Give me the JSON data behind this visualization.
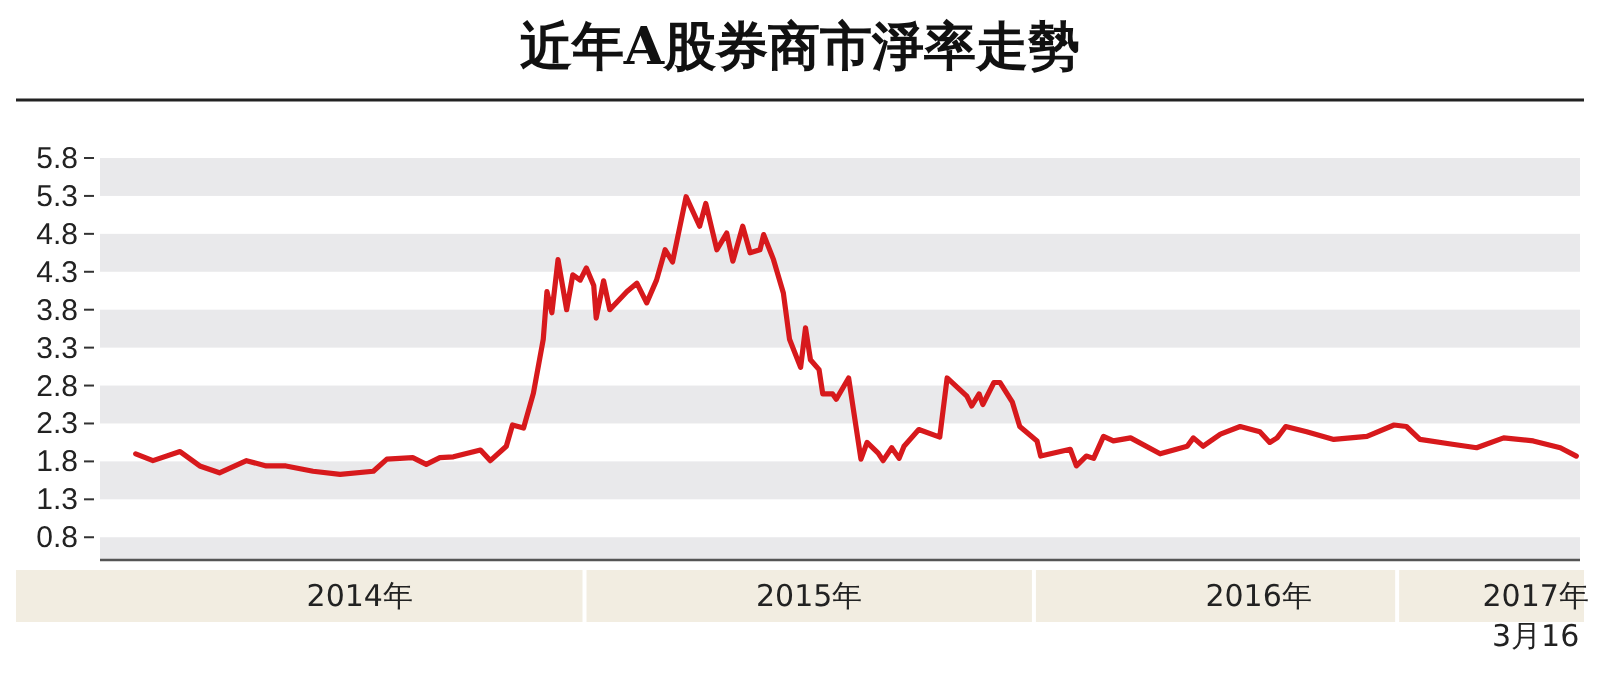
{
  "chart_data": {
    "type": "line",
    "title": "近年A股券商市淨率走勢",
    "x": [
      "2014-01-01",
      "2014-01-15",
      "2014-02-06",
      "2014-02-22",
      "2014-03-10",
      "2014-04-01",
      "2014-04-17",
      "2014-05-03",
      "2014-05-25",
      "2014-06-16",
      "2014-07-13",
      "2014-07-24",
      "2014-08-14",
      "2014-08-25",
      "2014-09-05",
      "2014-09-16",
      "2014-10-08",
      "2014-10-16",
      "2014-10-29",
      "2014-11-03",
      "2014-11-12",
      "2014-11-20",
      "2014-11-28",
      "2014-12-01",
      "2014-12-05",
      "2014-12-10",
      "2014-12-17",
      "2014-12-22",
      "2014-12-28",
      "2015-01-02",
      "2015-01-08",
      "2015-01-10",
      "2015-01-16",
      "2015-01-21",
      "2015-02-04",
      "2015-02-12",
      "2015-02-20",
      "2015-02-28",
      "2015-03-07",
      "2015-03-13",
      "2015-03-24",
      "2015-04-04",
      "2015-04-09",
      "2015-04-18",
      "2015-04-26",
      "2015-05-01",
      "2015-05-09",
      "2015-05-15",
      "2015-05-23",
      "2015-05-26",
      "2015-06-03",
      "2015-06-11",
      "2015-06-16",
      "2015-06-25",
      "2015-06-29",
      "2015-07-03",
      "2015-07-10",
      "2015-07-13",
      "2015-07-21",
      "2015-07-24",
      "2015-08-03",
      "2015-08-13",
      "2015-08-18",
      "2015-08-27",
      "2015-08-31",
      "2015-09-07",
      "2015-09-13",
      "2015-09-17",
      "2015-09-29",
      "2015-10-16",
      "2015-10-22",
      "2015-11-07",
      "2015-11-11",
      "2015-11-17",
      "2015-11-20",
      "2015-11-29",
      "2015-12-04",
      "2015-12-14",
      "2015-12-20",
      "2016-01-03",
      "2016-01-06",
      "2016-01-30",
      "2016-02-04",
      "2016-02-12",
      "2016-02-18",
      "2016-02-26",
      "2016-03-05",
      "2016-03-19",
      "2016-04-12",
      "2016-05-04",
      "2016-05-09",
      "2016-05-17",
      "2016-05-31",
      "2016-06-16",
      "2016-07-02",
      "2016-07-10",
      "2016-07-16",
      "2016-07-23",
      "2016-08-09",
      "2016-08-31",
      "2016-09-27",
      "2016-10-19",
      "2016-10-29",
      "2016-11-09",
      "2016-12-04",
      "2016-12-25",
      "2017-01-16",
      "2017-02-09",
      "2017-03-03",
      "2017-03-16"
    ],
    "series": [
      {
        "color": "#d7191c",
        "values": [
          1.9,
          1.81,
          1.93,
          1.74,
          1.65,
          1.81,
          1.74,
          1.74,
          1.67,
          1.63,
          1.67,
          1.83,
          1.85,
          1.76,
          1.85,
          1.86,
          1.95,
          1.81,
          2.0,
          2.28,
          2.24,
          2.7,
          3.41,
          4.04,
          3.76,
          4.46,
          3.8,
          4.26,
          4.19,
          4.35,
          4.12,
          3.69,
          4.18,
          3.8,
          4.04,
          4.15,
          3.89,
          4.19,
          4.59,
          4.43,
          5.29,
          4.9,
          5.2,
          4.59,
          4.81,
          4.44,
          4.9,
          4.55,
          4.59,
          4.79,
          4.46,
          4.02,
          3.41,
          3.04,
          3.56,
          3.14,
          3.01,
          2.69,
          2.69,
          2.62,
          2.9,
          1.83,
          2.05,
          1.91,
          1.81,
          1.98,
          1.84,
          2.0,
          2.22,
          2.12,
          2.9,
          2.66,
          2.53,
          2.69,
          2.55,
          2.84,
          2.84,
          2.58,
          2.26,
          2.07,
          1.87,
          1.96,
          1.74,
          1.87,
          1.84,
          2.13,
          2.07,
          2.11,
          1.9,
          2.0,
          2.11,
          2.0,
          2.16,
          2.26,
          2.19,
          2.05,
          2.11,
          2.26,
          2.19,
          2.09,
          2.13,
          2.28,
          2.26,
          2.09,
          2.03,
          1.98,
          2.11,
          2.07,
          1.98,
          1.87
        ]
      }
    ],
    "xlim": [
      "2013-12-03",
      "2017-03-19"
    ],
    "xticks": [
      {
        "value": "2014-07-02",
        "label": "2014年"
      },
      {
        "value": "2015-07-02",
        "label": "2015年"
      },
      {
        "value": "2016-07-01",
        "label": "2016年"
      },
      {
        "value": "2017-02-11",
        "label": "2017年\n3月16"
      }
    ],
    "ylim": [
      0.5,
      5.8
    ],
    "yticks": [
      0.8,
      1.3,
      1.8,
      2.3,
      2.8,
      3.3,
      3.8,
      4.3,
      4.8,
      5.3,
      5.8
    ],
    "marker": "none",
    "line_style": "solid"
  }
}
